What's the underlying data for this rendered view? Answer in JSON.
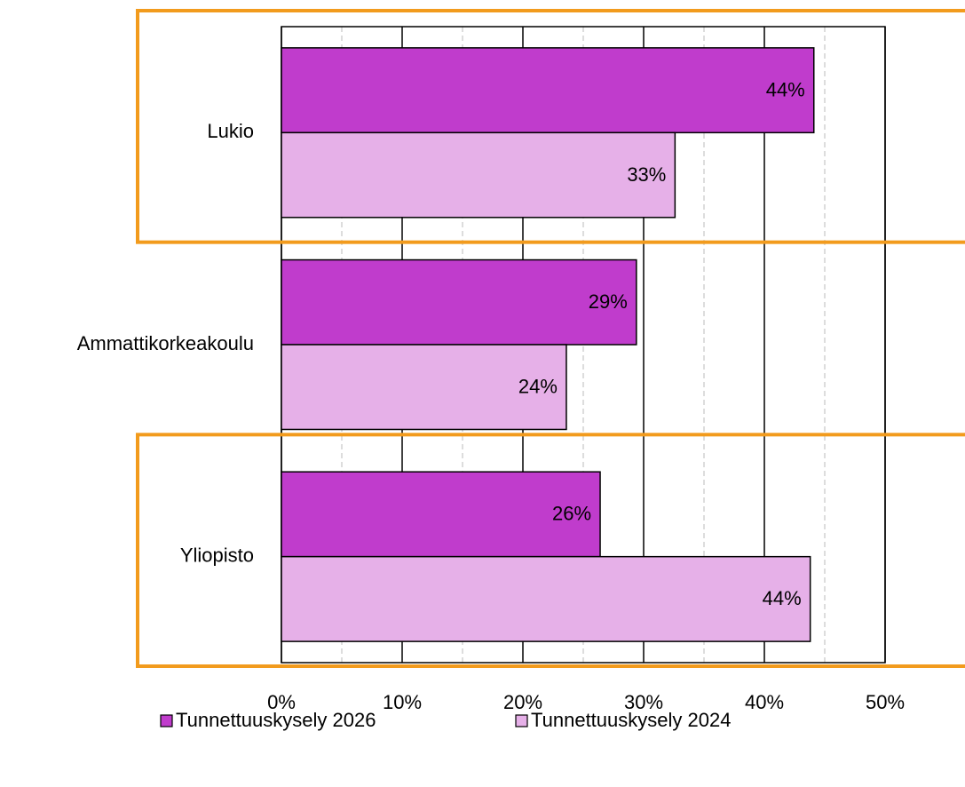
{
  "chart_data": {
    "type": "hbar",
    "categories": [
      "Lukio",
      "Ammattikorkeakoulu",
      "Yliopisto"
    ],
    "series": [
      {
        "name": "Tunnettuuskysely 2026",
        "color": "#c03ccc",
        "values": [
          44.1,
          29.4,
          26.4
        ],
        "value_labels": [
          "44%",
          "29%",
          "26%"
        ]
      },
      {
        "name": "Tunnettuuskysely 2024",
        "color": "#e6b0e8",
        "values": [
          32.6,
          23.6,
          43.8
        ],
        "value_labels": [
          "33%",
          "24%",
          "44%"
        ]
      }
    ],
    "xlim": [
      0,
      50
    ],
    "xticks": [
      {
        "value": 0,
        "label": "0%"
      },
      {
        "value": 10,
        "label": "10%"
      },
      {
        "value": 20,
        "label": "20%"
      },
      {
        "value": 30,
        "label": "30%"
      },
      {
        "value": 40,
        "label": "40%"
      },
      {
        "value": 50,
        "label": "50%"
      }
    ],
    "minor_xticks": [
      5,
      15,
      25,
      35,
      45
    ],
    "grid": true,
    "legend": "bottom",
    "highlighted_categories": [
      0,
      2
    ],
    "highlight_color": "#f29b1d"
  }
}
